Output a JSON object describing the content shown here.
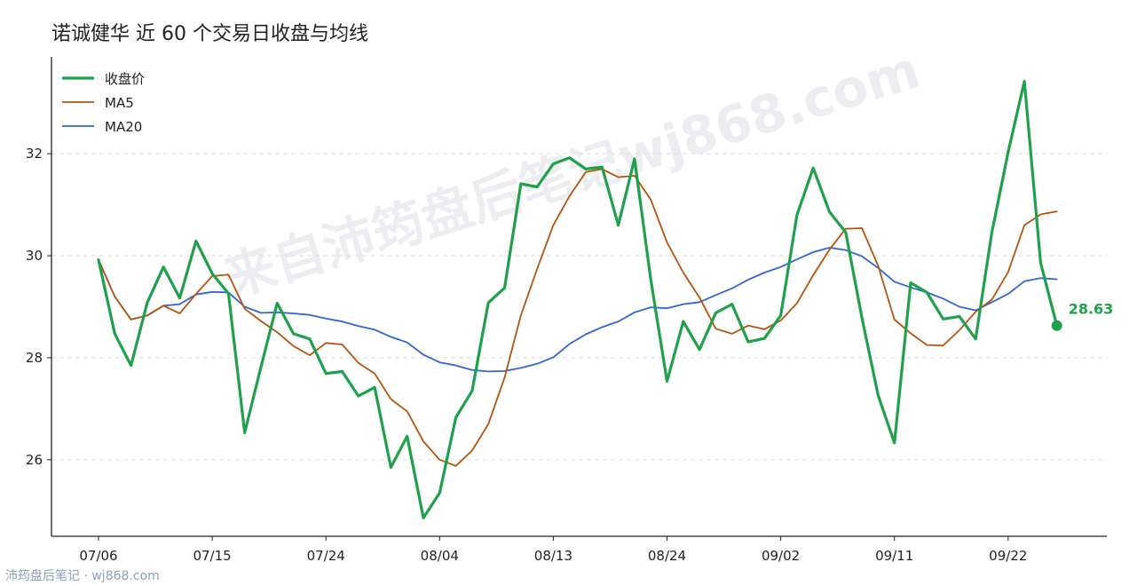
{
  "watermark": "来自沛筠盘后笔记wj868.com",
  "footer": "沛筠盘后笔记 · wj868.com",
  "colors": {
    "close": "#1fa04b",
    "ma5": "#b5540c",
    "ma20": "#3064d8",
    "grid": "#dddddd",
    "axis": "#222222"
  },
  "chart_data": {
    "type": "line",
    "title": "诺诚健华 近 60 个交易日收盘与均线",
    "xlabel": "",
    "ylabel": "",
    "ylim": [
      24.5,
      33.9
    ],
    "yticks": [
      26,
      28,
      30,
      32
    ],
    "grid": "horizontal dashed",
    "legend_position": "top-left",
    "x": [
      "07/06",
      "07/07",
      "07/08",
      "07/09",
      "07/10",
      "07/13",
      "07/14",
      "07/15",
      "07/16",
      "07/17",
      "07/20",
      "07/21",
      "07/22",
      "07/23",
      "07/24",
      "07/27",
      "07/28",
      "07/29",
      "07/30",
      "07/31",
      "08/03",
      "08/04",
      "08/05",
      "08/06",
      "08/07",
      "08/10",
      "08/11",
      "08/12",
      "08/13",
      "08/14",
      "08/17",
      "08/18",
      "08/19",
      "08/20",
      "08/21",
      "08/24",
      "08/25",
      "08/26",
      "08/27",
      "08/28",
      "08/31",
      "09/01",
      "09/02",
      "09/03",
      "09/04",
      "09/07",
      "09/08",
      "09/09",
      "09/10",
      "09/11",
      "09/14",
      "09/15",
      "09/16",
      "09/17",
      "09/18",
      "09/19",
      "09/22",
      "09/23",
      "09/24",
      "09/25"
    ],
    "xtick_labels": [
      "07/06",
      "07/15",
      "07/24",
      "08/04",
      "08/13",
      "08/24",
      "09/02",
      "09/11",
      "09/22"
    ],
    "series": [
      {
        "name": "收盘价",
        "key": "close",
        "values": [
          29.92,
          28.47,
          27.85,
          29.08,
          29.78,
          29.17,
          30.29,
          29.65,
          29.26,
          26.53,
          27.82,
          29.07,
          28.47,
          28.37,
          27.69,
          27.73,
          27.25,
          27.42,
          25.85,
          26.46,
          24.86,
          25.35,
          26.83,
          27.35,
          29.08,
          29.37,
          31.41,
          31.35,
          31.8,
          31.92,
          31.7,
          31.74,
          30.6,
          31.9,
          29.53,
          27.54,
          28.71,
          28.16,
          28.88,
          29.05,
          28.31,
          28.38,
          28.83,
          30.8,
          31.72,
          30.86,
          30.46,
          28.78,
          27.26,
          26.33,
          29.47,
          29.28,
          28.76,
          28.81,
          28.37,
          30.46,
          32.03,
          33.42,
          29.86,
          28.63
        ]
      },
      {
        "name": "MA5",
        "key": "ma5",
        "values": [
          29.92,
          29.2,
          28.75,
          28.83,
          29.02,
          28.87,
          29.25,
          29.6,
          29.63,
          28.96,
          28.72,
          28.5,
          28.23,
          28.05,
          28.29,
          28.26,
          27.9,
          27.69,
          27.19,
          26.95,
          26.36,
          26.0,
          25.88,
          26.18,
          26.7,
          27.61,
          28.83,
          29.74,
          30.6,
          31.17,
          31.64,
          31.7,
          31.54,
          31.57,
          31.1,
          30.26,
          29.67,
          29.18,
          28.57,
          28.47,
          28.63,
          28.56,
          28.73,
          29.07,
          29.62,
          30.12,
          30.53,
          30.54,
          29.8,
          28.75,
          28.48,
          28.25,
          28.24,
          28.54,
          28.9,
          29.14,
          29.68,
          30.6,
          30.81,
          30.87
        ]
      },
      {
        "name": "MA20",
        "key": "ma20",
        "values": [
          29.92,
          29.2,
          28.75,
          28.83,
          29.02,
          29.05,
          29.24,
          29.29,
          29.28,
          29.0,
          28.88,
          28.89,
          28.87,
          28.84,
          28.77,
          28.71,
          28.62,
          28.55,
          28.41,
          28.3,
          28.06,
          27.91,
          27.85,
          27.76,
          27.73,
          27.74,
          27.8,
          27.88,
          28.01,
          28.27,
          28.46,
          28.6,
          28.71,
          28.89,
          28.99,
          28.97,
          29.05,
          29.09,
          29.23,
          29.36,
          29.53,
          29.67,
          29.78,
          29.93,
          30.07,
          30.16,
          30.11,
          29.99,
          29.76,
          29.49,
          29.38,
          29.28,
          29.16,
          29.0,
          28.93,
          29.09,
          29.25,
          29.5,
          29.56,
          29.54
        ]
      }
    ],
    "end_annotation": "28.63"
  }
}
